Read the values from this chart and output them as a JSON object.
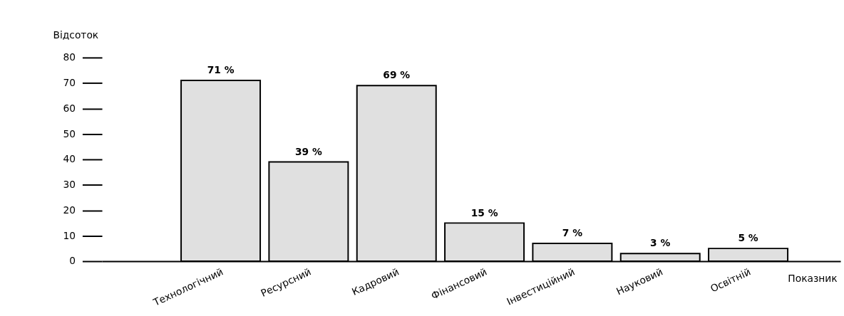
{
  "chart_data": {
    "type": "bar",
    "xlabel": "Показник",
    "ylabel": "Відсоток",
    "categories": [
      "Технологічний",
      "Ресурсний",
      "Кадровий",
      "Фінансовий",
      "Інвестиційний",
      "Науковий",
      "Освітній"
    ],
    "values": [
      71,
      39,
      69,
      15,
      7,
      3,
      5
    ],
    "value_labels": [
      "71 %",
      "39 %",
      "69 %",
      "15 %",
      "7 %",
      "3 %",
      "5 %"
    ],
    "color": "#e0e0e0",
    "ylim": [
      0,
      80
    ],
    "yticks": [
      0,
      10,
      20,
      30,
      40,
      50,
      60,
      70,
      80
    ],
    "grid": false
  }
}
